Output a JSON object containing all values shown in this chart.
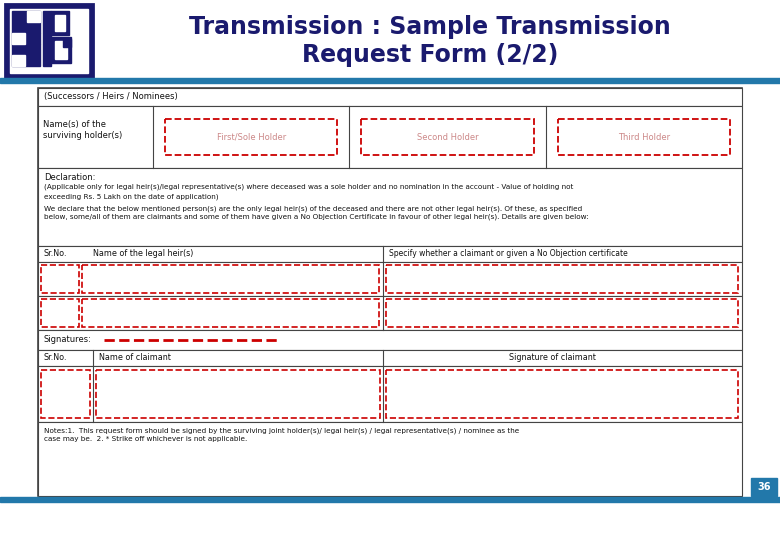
{
  "title_line1": "Transmission : Sample Transmission",
  "title_line2": "Request Form (2/2)",
  "title_color": "#1a1a6e",
  "title_fontsize": 17,
  "header_bar_color": "#2278aa",
  "footer_bar_color": "#2278aa",
  "page_number": "36",
  "page_number_bg": "#2278aa",
  "page_number_color": "white",
  "form_border_color": "#444444",
  "dashed_box_color": "#cc0000",
  "text_color": "#111111",
  "sebi_blue": "#1a1a6e",
  "successors_text": "(Successors / Heirs / Nominees)",
  "names_label_1": "Name(s) of the",
  "names_label_2": "surviving holder(s)",
  "holder1": "First/Sole Holder",
  "holder2": "Second Holder",
  "holder3": "Third Holder",
  "declaration_title": "Declaration:",
  "declaration_text1": "(Applicable only for legal heir(s)/legal representative(s) where deceased was a sole holder and no nomination in the account - Value of holding not",
  "declaration_text1b": "exceeding Rs. 5 Lakh on the date of application)",
  "declaration_text2": "We declare that the below mentioned person(s) are the only legal heir(s) of the deceased and there are not other legal heir(s). Of these, as specified",
  "declaration_text2b": "below, some/all of them are claimants and some of them have given a No Objection Certificate in favour of other legal heir(s). Details are given below:",
  "heirs_srno": "Sr.No.",
  "heirs_name_col": "Name of the legal heir(s)",
  "heirs_noc_col": "Specify whether a claimant or given a No Objection certificate",
  "signatures_label": "Signatures:",
  "claimant_srno": "Sr.No.",
  "claimant_name_col": "Name of claimant",
  "claimant_sig_col": "Signature of claimant",
  "notes_text1": "Notes:1.  This request form should be signed by the surviving joint holder(s)/ legal heir(s) / legal representative(s) / nominee as the",
  "notes_text2": "case may be.  2. * Strike off whichever is not applicable."
}
